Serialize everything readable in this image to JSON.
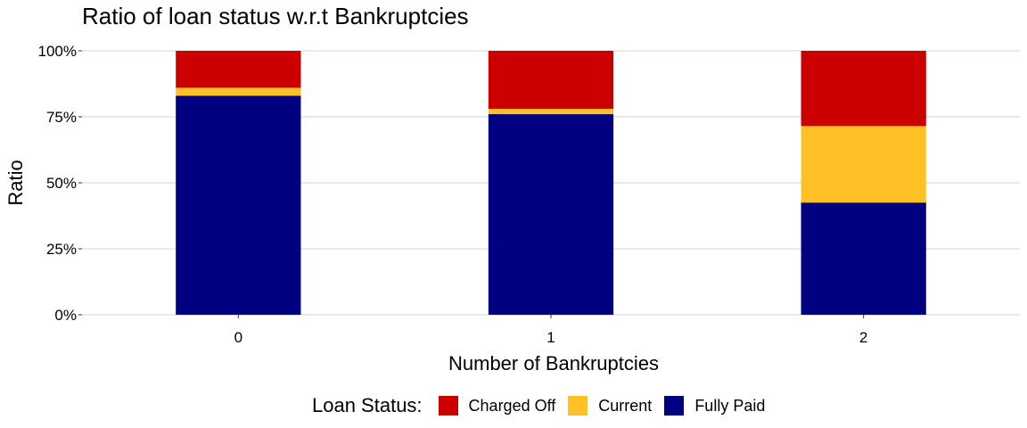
{
  "chart_data": {
    "type": "bar",
    "stacked": true,
    "title": "Ratio of loan status w.r.t Bankruptcies",
    "xlabel": "Number of Bankruptcies",
    "ylabel": "Ratio",
    "categories": [
      "0",
      "1",
      "2"
    ],
    "ylim": [
      0,
      1
    ],
    "yticks": [
      0,
      0.25,
      0.5,
      0.75,
      1.0
    ],
    "ytick_labels": [
      "0%",
      "25%",
      "50%",
      "75%",
      "100%"
    ],
    "grid": true,
    "legend_title": "Loan Status:",
    "legend_position": "bottom",
    "series": [
      {
        "name": "Fully Paid",
        "color": "#000080",
        "values": [
          0.83,
          0.76,
          0.425
        ]
      },
      {
        "name": "Current",
        "color": "#FFC125",
        "values": [
          0.03,
          0.02,
          0.29
        ]
      },
      {
        "name": "Charged Off",
        "color": "#CD0000",
        "values": [
          0.14,
          0.22,
          0.285
        ]
      }
    ],
    "legend_order": [
      "Charged Off",
      "Current",
      "Fully Paid"
    ]
  }
}
